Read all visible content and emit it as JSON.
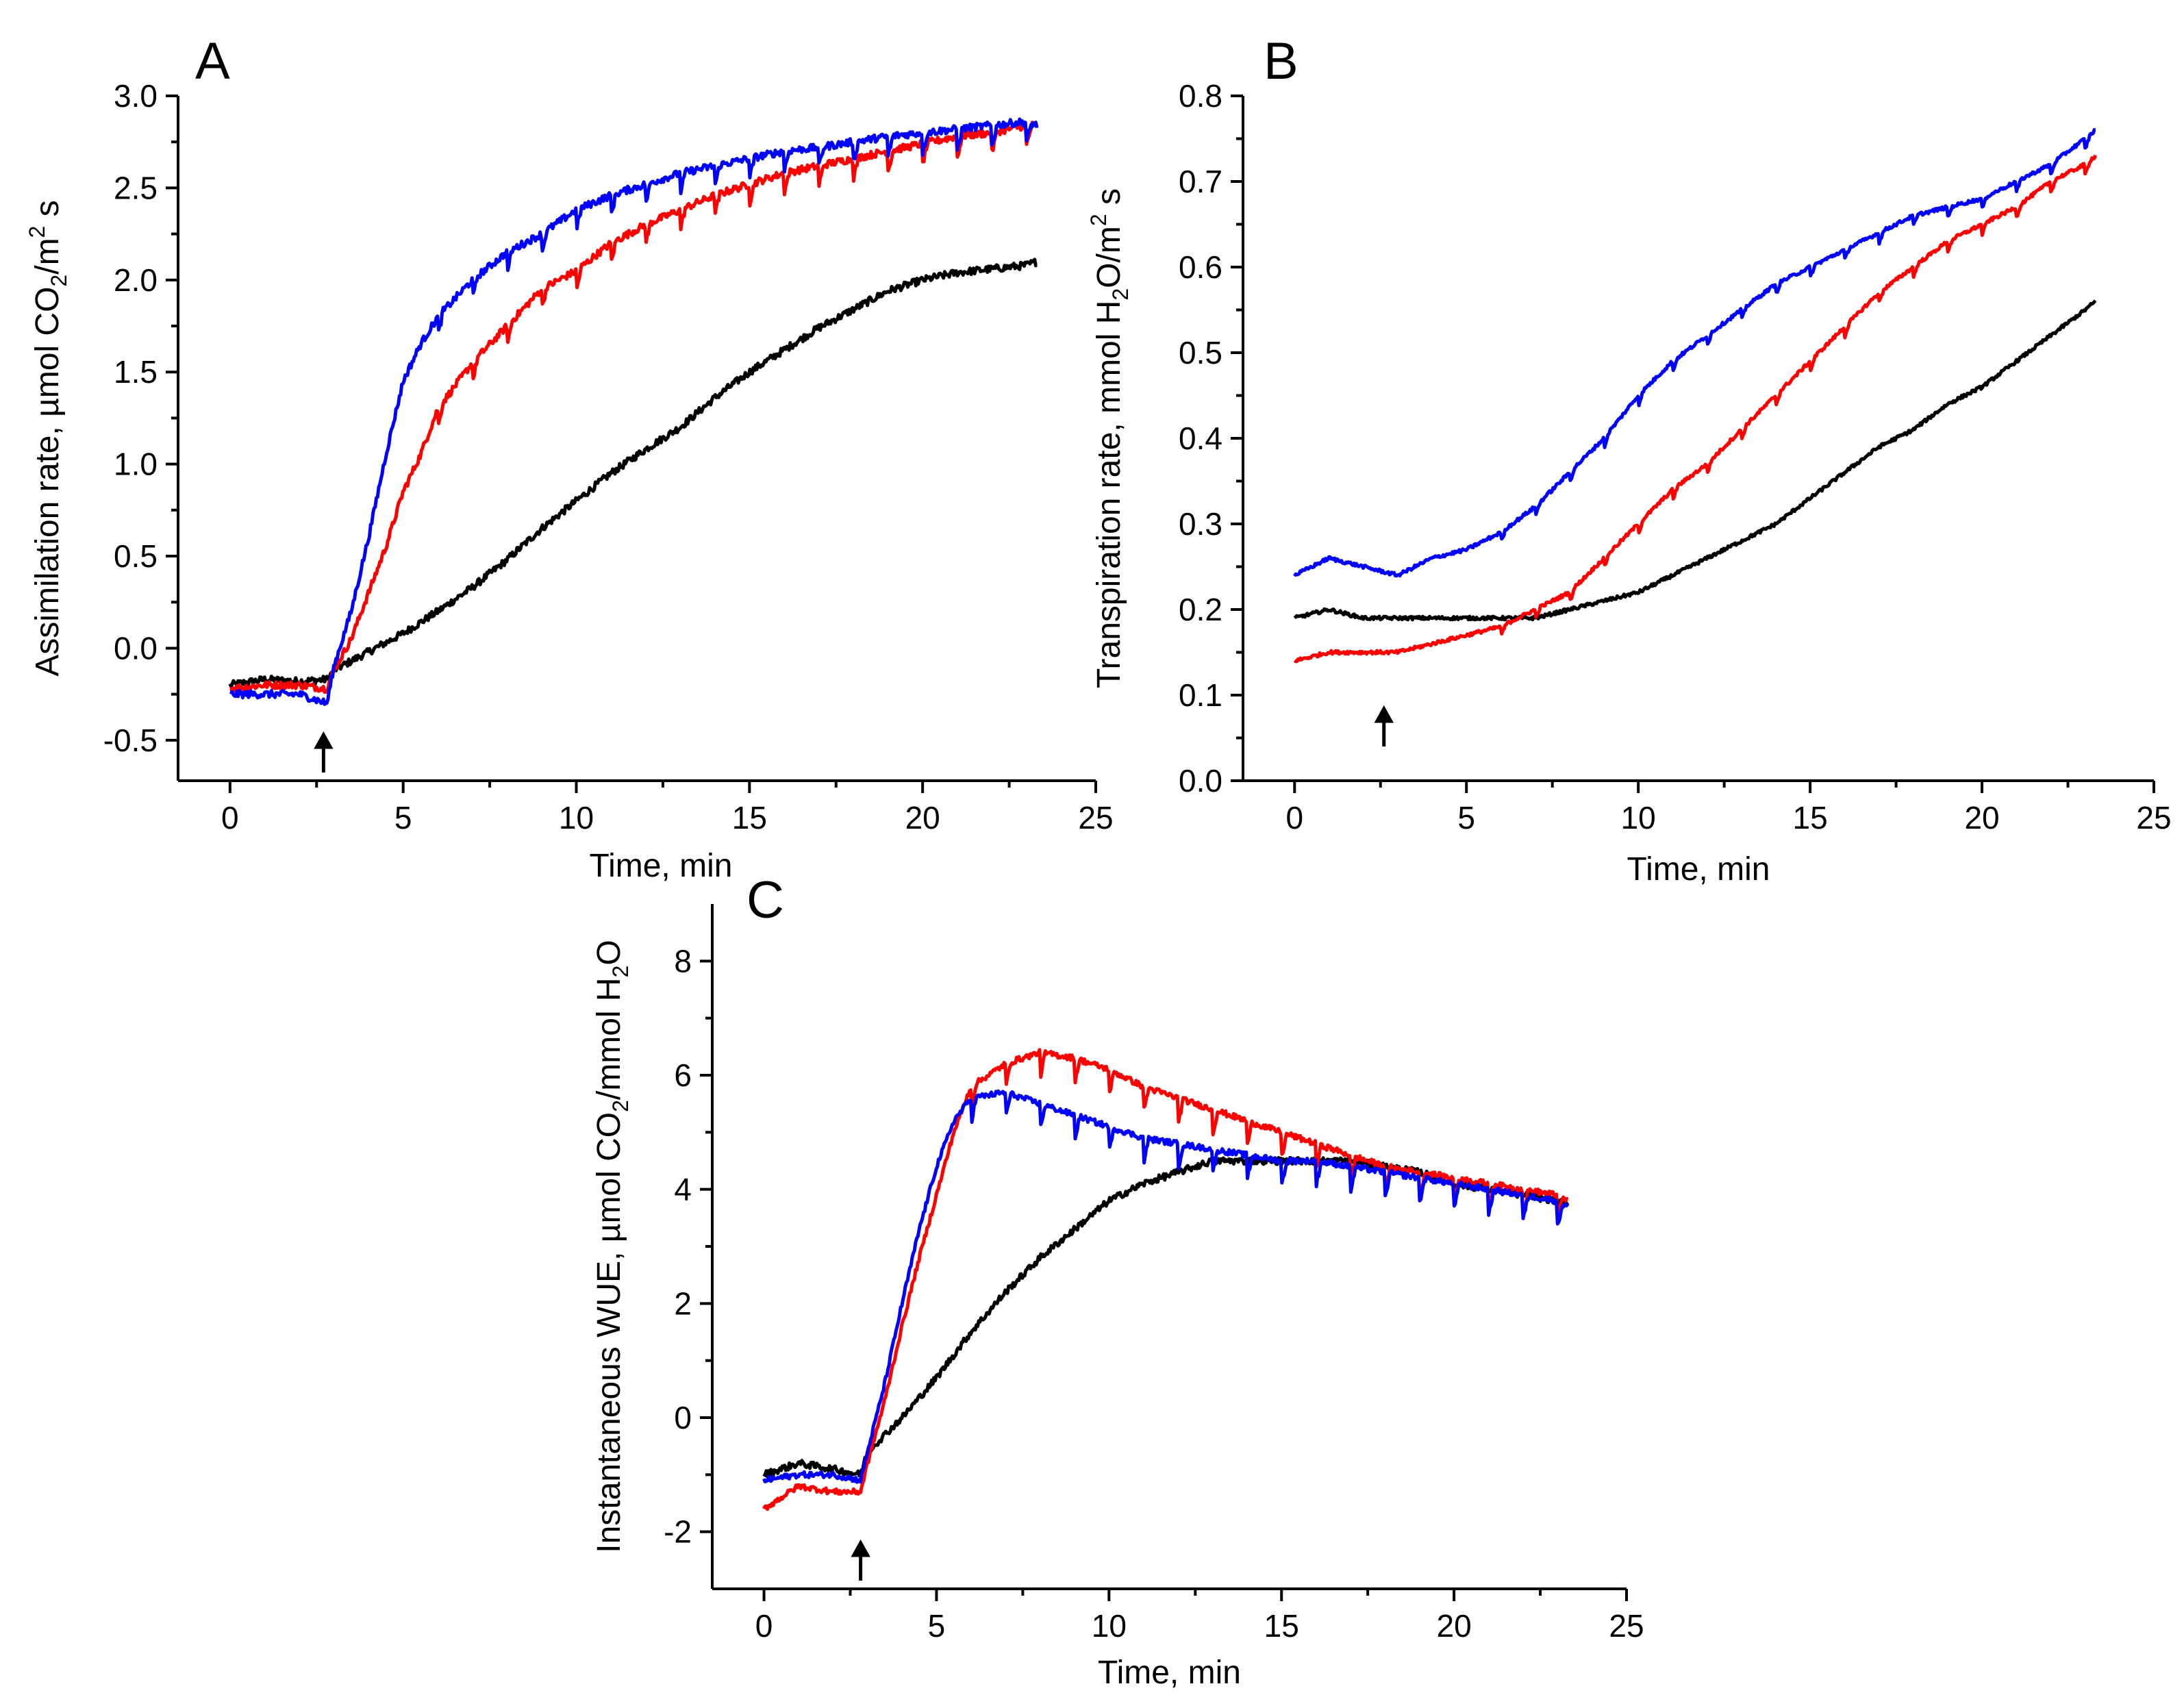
{
  "chart_data": [
    {
      "panel": "A",
      "type": "line",
      "xlabel": "Time, min",
      "ylabel": "Assimilation rate, µmol CO",
      "ylabel_sub": "2",
      "ylabel_mid": "/m",
      "ylabel_sup": "2",
      "ylabel_end": " s",
      "xlim": [
        -1.5,
        25
      ],
      "ylim": [
        -0.72,
        3.0
      ],
      "xticks": [
        0,
        5,
        10,
        15,
        20,
        25
      ],
      "yticks": [
        -0.5,
        0.0,
        0.5,
        1.0,
        1.5,
        2.0,
        2.5,
        3.0
      ],
      "ytick_labels": [
        "-0.5",
        "0.0",
        "0.5",
        "1.0",
        "1.5",
        "2.0",
        "2.5",
        "3.0"
      ],
      "arrow_x": 2.7,
      "series": [
        {
          "color": "#000000",
          "x": [
            0,
            1,
            2,
            2.8,
            3,
            4,
            5,
            6,
            7,
            8,
            9,
            10,
            11,
            12,
            13,
            14,
            15,
            16,
            17,
            18,
            19,
            20,
            21,
            22,
            23,
            23.3
          ],
          "y": [
            -0.2,
            -0.17,
            -0.18,
            -0.17,
            -0.12,
            -0.02,
            0.08,
            0.2,
            0.33,
            0.48,
            0.65,
            0.8,
            0.95,
            1.08,
            1.2,
            1.36,
            1.5,
            1.62,
            1.74,
            1.84,
            1.94,
            2.0,
            2.04,
            2.06,
            2.08,
            2.1
          ],
          "noise": 0.02,
          "dip_every": 0
        },
        {
          "color": "#ff0000",
          "x": [
            0,
            1,
            2,
            2.8,
            3,
            3.5,
            4,
            4.5,
            5,
            5.5,
            6,
            7,
            8,
            9,
            10,
            11,
            12,
            13,
            14,
            15,
            16,
            17,
            18,
            19,
            20,
            21,
            22,
            23,
            23.3
          ],
          "y": [
            -0.22,
            -0.2,
            -0.2,
            -0.22,
            -0.12,
            0.05,
            0.3,
            0.55,
            0.85,
            1.05,
            1.3,
            1.55,
            1.75,
            1.95,
            2.05,
            2.2,
            2.3,
            2.38,
            2.46,
            2.52,
            2.58,
            2.62,
            2.66,
            2.7,
            2.74,
            2.78,
            2.8,
            2.84,
            2.84
          ],
          "noise": 0.02,
          "dip_every": 1
        },
        {
          "color": "#0000ff",
          "x": [
            0,
            1,
            2,
            2.8,
            3,
            3.5,
            4,
            4.5,
            5,
            5.5,
            6,
            6.5,
            7,
            8,
            9,
            10,
            11,
            12,
            13,
            14,
            15,
            16,
            17,
            18,
            19,
            20,
            21,
            22,
            23,
            23.3
          ],
          "y": [
            -0.25,
            -0.25,
            -0.25,
            -0.3,
            -0.1,
            0.2,
            0.6,
            1.05,
            1.45,
            1.65,
            1.8,
            1.9,
            2.0,
            2.15,
            2.25,
            2.38,
            2.46,
            2.52,
            2.58,
            2.62,
            2.66,
            2.7,
            2.72,
            2.75,
            2.78,
            2.8,
            2.82,
            2.84,
            2.86,
            2.84
          ],
          "noise": 0.02,
          "dip_every": 1
        }
      ]
    },
    {
      "panel": "B",
      "type": "line",
      "xlabel": "Time, min",
      "ylabel": "Transpiration rate, mmol H",
      "ylabel_sub": "2",
      "ylabel_mid": "O/m",
      "ylabel_sup": "2",
      "ylabel_end": " s",
      "xlim": [
        -1.5,
        25
      ],
      "ylim": [
        0.0,
        0.8
      ],
      "xticks": [
        0,
        5,
        10,
        15,
        20,
        25
      ],
      "yticks": [
        0.0,
        0.1,
        0.2,
        0.3,
        0.4,
        0.5,
        0.6,
        0.7,
        0.8
      ],
      "ytick_labels": [
        "0.0",
        "0.1",
        "0.2",
        "0.3",
        "0.4",
        "0.5",
        "0.6",
        "0.7",
        "0.8"
      ],
      "arrow_x": 2.6,
      "series": [
        {
          "color": "#000000",
          "x": [
            0,
            1,
            2,
            3,
            4,
            5,
            6,
            7,
            8,
            9,
            10,
            11,
            12,
            13,
            14,
            15,
            16,
            17,
            18,
            19,
            20,
            21,
            22,
            23,
            23.3
          ],
          "y": [
            0.19,
            0.2,
            0.19,
            0.19,
            0.19,
            0.19,
            0.19,
            0.19,
            0.2,
            0.21,
            0.22,
            0.24,
            0.26,
            0.28,
            0.3,
            0.33,
            0.36,
            0.39,
            0.41,
            0.44,
            0.46,
            0.49,
            0.52,
            0.55,
            0.56
          ],
          "noise": 0.002,
          "dip_every": 0
        },
        {
          "color": "#ff0000",
          "x": [
            0,
            1,
            2,
            3,
            4,
            5,
            6,
            7,
            8,
            9,
            10,
            11,
            12,
            13,
            14,
            15,
            16,
            17,
            18,
            19,
            20,
            21,
            22,
            23,
            23.3
          ],
          "y": [
            0.14,
            0.15,
            0.15,
            0.15,
            0.16,
            0.17,
            0.18,
            0.2,
            0.22,
            0.26,
            0.3,
            0.34,
            0.37,
            0.41,
            0.45,
            0.49,
            0.53,
            0.57,
            0.6,
            0.63,
            0.65,
            0.67,
            0.7,
            0.72,
            0.73
          ],
          "noise": 0.002,
          "dip_every": 1
        },
        {
          "color": "#0000ff",
          "x": [
            0,
            1,
            2,
            3,
            4,
            5,
            6,
            7,
            8,
            9,
            10,
            11,
            12,
            13,
            14,
            15,
            16,
            17,
            18,
            19,
            20,
            21,
            22,
            23,
            23.3
          ],
          "y": [
            0.24,
            0.26,
            0.25,
            0.24,
            0.26,
            0.27,
            0.29,
            0.32,
            0.36,
            0.4,
            0.45,
            0.49,
            0.52,
            0.55,
            0.58,
            0.6,
            0.62,
            0.64,
            0.66,
            0.67,
            0.68,
            0.7,
            0.72,
            0.75,
            0.76
          ],
          "noise": 0.002,
          "dip_every": 1
        }
      ]
    },
    {
      "panel": "C",
      "type": "line",
      "xlabel": "Time, min",
      "ylabel": "Instantaneous WUE, µmol CO",
      "ylabel_sub": "2",
      "ylabel_mid": "/mmol H",
      "ylabel_sup": "",
      "ylabel_sub2": "2",
      "ylabel_end": "O",
      "xlim": [
        -1.5,
        25
      ],
      "ylim": [
        -3.0,
        9.0
      ],
      "xticks": [
        0,
        5,
        10,
        15,
        20,
        25
      ],
      "yticks": [
        -2,
        0,
        2,
        4,
        6,
        8
      ],
      "ytick_labels": [
        "-2",
        "0",
        "2",
        "4",
        "6",
        "8"
      ],
      "arrow_x": 2.8,
      "series": [
        {
          "color": "#000000",
          "x": [
            0,
            1,
            2,
            2.8,
            3,
            4,
            5,
            6,
            7,
            8,
            9,
            10,
            11,
            12,
            13,
            14,
            15,
            16,
            17,
            18,
            19,
            20,
            21,
            22,
            23,
            23.3
          ],
          "y": [
            -1.0,
            -0.8,
            -0.9,
            -1.0,
            -0.6,
            0.0,
            0.7,
            1.5,
            2.2,
            2.8,
            3.3,
            3.8,
            4.1,
            4.3,
            4.5,
            4.5,
            4.5,
            4.5,
            4.5,
            4.4,
            4.3,
            4.1,
            4.0,
            3.9,
            3.8,
            3.7
          ],
          "noise": 0.06,
          "dip_every": 0
        },
        {
          "color": "#ff0000",
          "x": [
            0,
            1,
            2,
            2.8,
            3,
            3.5,
            4,
            4.5,
            5,
            5.5,
            6,
            7,
            8,
            9,
            10,
            11,
            12,
            13,
            14,
            15,
            16,
            17,
            18,
            19,
            20,
            21,
            22,
            23,
            23.3
          ],
          "y": [
            -1.6,
            -1.2,
            -1.3,
            -1.3,
            -0.8,
            0.3,
            1.6,
            2.8,
            3.9,
            5.0,
            5.8,
            6.2,
            6.4,
            6.3,
            6.1,
            5.8,
            5.6,
            5.4,
            5.2,
            5.0,
            4.8,
            4.6,
            4.4,
            4.3,
            4.2,
            4.1,
            4.0,
            3.9,
            3.8
          ],
          "noise": 0.05,
          "dip_every": 1
        },
        {
          "color": "#0000ff",
          "x": [
            0,
            1,
            2,
            2.8,
            3,
            3.5,
            4,
            4.5,
            5,
            5.5,
            6,
            7,
            8,
            9,
            10,
            11,
            12,
            13,
            14,
            15,
            16,
            17,
            18,
            19,
            20,
            21,
            22,
            23,
            23.3
          ],
          "y": [
            -1.1,
            -1.0,
            -1.0,
            -1.1,
            -0.6,
            0.6,
            2.0,
            3.3,
            4.4,
            5.2,
            5.6,
            5.7,
            5.5,
            5.3,
            5.1,
            4.9,
            4.8,
            4.7,
            4.6,
            4.5,
            4.5,
            4.4,
            4.3,
            4.2,
            4.1,
            4.0,
            3.9,
            3.8,
            3.7
          ],
          "noise": 0.05,
          "dip_every": 1
        }
      ]
    }
  ]
}
